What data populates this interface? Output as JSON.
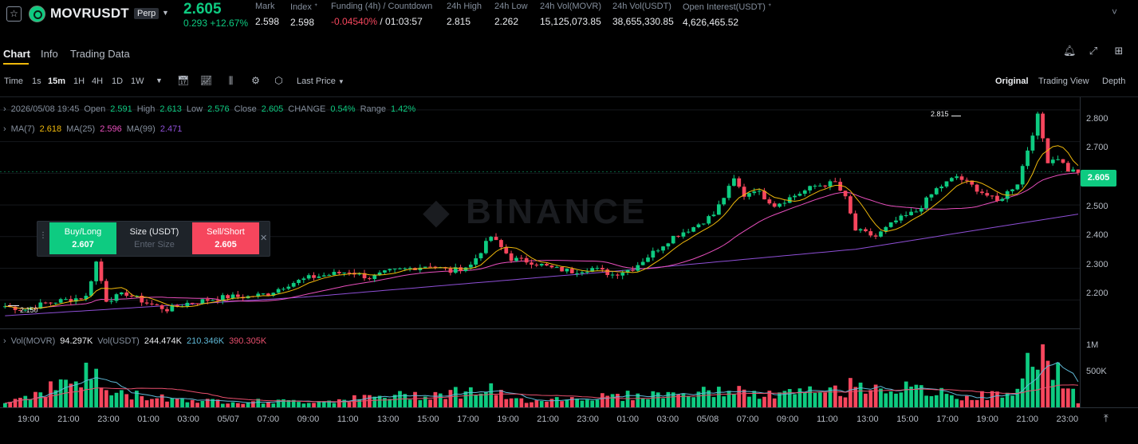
{
  "header": {
    "symbol": "MOVRUSDT",
    "badge": "Perp",
    "last_price": "2.605",
    "change": "0.293 +12.67%",
    "stats": [
      {
        "label": "Mark",
        "value": "2.598"
      },
      {
        "label": "Index ᐩ",
        "value": "2.598"
      },
      {
        "label": "Funding (4h) / Countdown",
        "value_funding": "-0.04540%",
        "value_countdown": "/ 01:03:57"
      },
      {
        "label": "24h High",
        "value": "2.815"
      },
      {
        "label": "24h Low",
        "value": "2.262"
      },
      {
        "label": "24h Vol(MOVR)",
        "value": "15,125,073.85"
      },
      {
        "label": "24h Vol(USDT)",
        "value": "38,655,330.85"
      },
      {
        "label": "Open Interest(USDT) ᐩ",
        "value": "4,626,465.52"
      }
    ]
  },
  "tabs": [
    "Chart",
    "Info",
    "Trading Data"
  ],
  "toolbar": {
    "intervals": [
      "Time",
      "1s",
      "15m",
      "1H",
      "4H",
      "1D",
      "1W"
    ],
    "active_interval": "15m",
    "price_type": "Last Price",
    "views": [
      "Original",
      "Trading View",
      "Depth"
    ],
    "active_view": "Original"
  },
  "ohlc": {
    "datetime": "2026/05/08 19:45",
    "open_label": "Open",
    "open": "2.591",
    "high_label": "High",
    "high": "2.613",
    "low_label": "Low",
    "low": "2.576",
    "close_label": "Close",
    "close": "2.605",
    "change_label": "CHANGE",
    "change": "0.54%",
    "range_label": "Range",
    "range": "1.42%"
  },
  "ma": [
    {
      "label": "MA(7)",
      "value": "2.618",
      "color": "#f0b90b"
    },
    {
      "label": "MA(25)",
      "value": "2.596",
      "color": "#e84fbd"
    },
    {
      "label": "MA(99)",
      "value": "2.471",
      "color": "#8e4fd6"
    }
  ],
  "volume_legend": {
    "label": "Vol(MOVR)",
    "movr": "94.297K",
    "usdt_label": "Vol(USDT)",
    "usdt": "244.474K",
    "ma1": "210.346K",
    "ma2": "390.305K"
  },
  "trade_box": {
    "buy_label": "Buy/Long",
    "buy_price": "2.607",
    "size_label": "Size (USDT)",
    "size_placeholder": "Enter Size",
    "sell_label": "Sell/Short",
    "sell_price": "2.605"
  },
  "chart_data": {
    "type": "candlestick",
    "y_axis_ticks": [
      "2.800",
      "2.700",
      "2.600",
      "2.500",
      "2.400",
      "2.300",
      "2.200"
    ],
    "ylim": [
      2.11,
      2.84
    ],
    "volume_axis_ticks": [
      "1M",
      "500K"
    ],
    "x_axis_ticks": [
      "19:00",
      "21:00",
      "23:00",
      "01:00",
      "03:00",
      "05/07",
      "07:00",
      "09:00",
      "11:00",
      "13:00",
      "15:00",
      "17:00",
      "19:00",
      "21:00",
      "23:00",
      "01:00",
      "03:00",
      "05/08",
      "07:00",
      "09:00",
      "11:00",
      "13:00",
      "15:00",
      "17:00",
      "19:00",
      "21:00",
      "23:00"
    ],
    "high_marker": "2.815",
    "low_marker": "2.150",
    "current_price": "2.605",
    "close_path": [
      [
        0,
        2.18
      ],
      [
        4,
        2.17
      ],
      [
        8,
        2.19
      ],
      [
        12,
        2.2
      ],
      [
        16,
        2.21
      ],
      [
        18,
        2.32
      ],
      [
        20,
        2.2
      ],
      [
        24,
        2.22
      ],
      [
        28,
        2.19
      ],
      [
        32,
        2.17
      ],
      [
        36,
        2.19
      ],
      [
        40,
        2.2
      ],
      [
        44,
        2.21
      ],
      [
        48,
        2.21
      ],
      [
        52,
        2.22
      ],
      [
        56,
        2.25
      ],
      [
        60,
        2.27
      ],
      [
        64,
        2.28
      ],
      [
        68,
        2.29
      ],
      [
        72,
        2.27
      ],
      [
        76,
        2.29
      ],
      [
        80,
        2.3
      ],
      [
        84,
        2.31
      ],
      [
        88,
        2.29
      ],
      [
        92,
        2.31
      ],
      [
        96,
        2.4
      ],
      [
        100,
        2.33
      ],
      [
        104,
        2.32
      ],
      [
        108,
        2.3
      ],
      [
        112,
        2.29
      ],
      [
        116,
        2.3
      ],
      [
        120,
        2.28
      ],
      [
        124,
        2.3
      ],
      [
        128,
        2.35
      ],
      [
        132,
        2.4
      ],
      [
        136,
        2.43
      ],
      [
        140,
        2.47
      ],
      [
        144,
        2.58
      ],
      [
        146,
        2.53
      ],
      [
        148,
        2.55
      ],
      [
        152,
        2.5
      ],
      [
        156,
        2.53
      ],
      [
        160,
        2.56
      ],
      [
        164,
        2.57
      ],
      [
        166,
        2.52
      ],
      [
        168,
        2.42
      ],
      [
        172,
        2.4
      ],
      [
        176,
        2.45
      ],
      [
        180,
        2.48
      ],
      [
        184,
        2.55
      ],
      [
        188,
        2.59
      ],
      [
        192,
        2.55
      ],
      [
        196,
        2.51
      ],
      [
        200,
        2.57
      ],
      [
        204,
        2.78
      ],
      [
        206,
        2.64
      ],
      [
        208,
        2.65
      ],
      [
        210,
        2.61
      ],
      [
        212,
        2.605
      ]
    ],
    "ma99_path": [
      [
        0,
        2.15
      ],
      [
        60,
        2.21
      ],
      [
        120,
        2.29
      ],
      [
        168,
        2.36
      ],
      [
        212,
        2.471
      ]
    ],
    "volume_path_k": [
      [
        0,
        80
      ],
      [
        18,
        600
      ],
      [
        20,
        250
      ],
      [
        40,
        110
      ],
      [
        60,
        100
      ],
      [
        96,
        300
      ],
      [
        100,
        120
      ],
      [
        140,
        260
      ],
      [
        144,
        320
      ],
      [
        148,
        200
      ],
      [
        166,
        300
      ],
      [
        168,
        420
      ],
      [
        190,
        180
      ],
      [
        200,
        240
      ],
      [
        204,
        1150
      ],
      [
        206,
        750
      ],
      [
        210,
        380
      ],
      [
        212,
        94
      ]
    ]
  }
}
